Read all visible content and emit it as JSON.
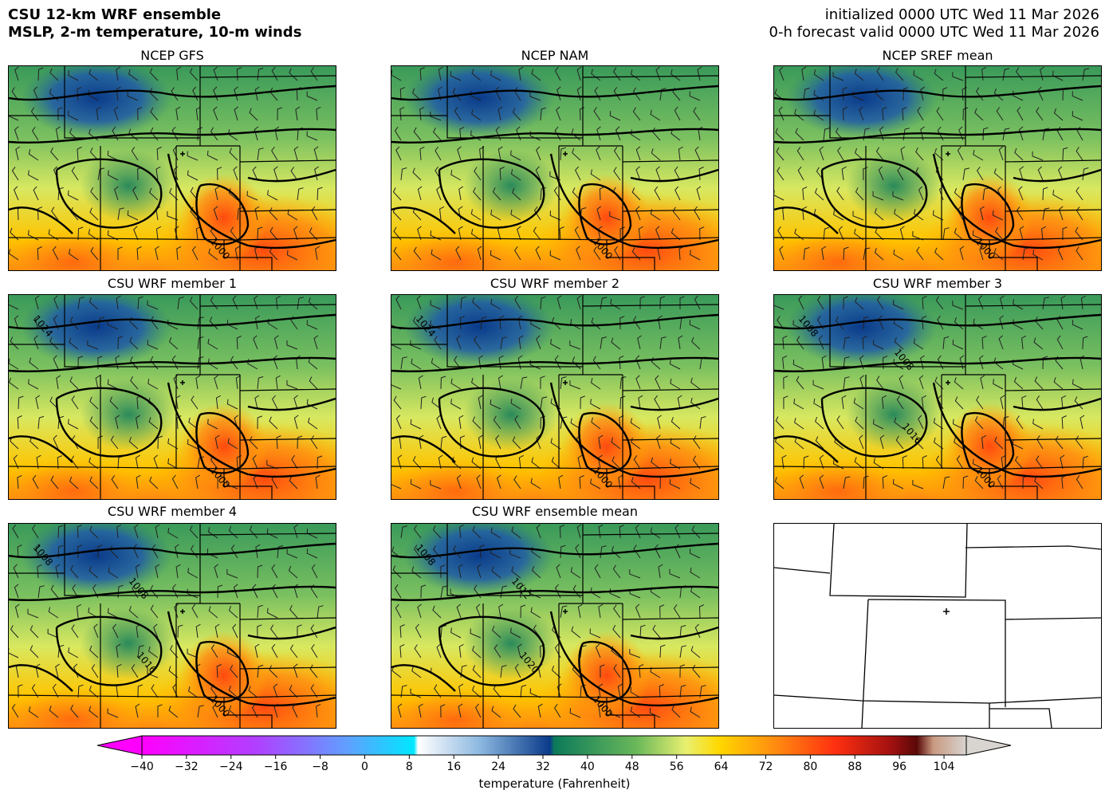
{
  "header": {
    "title_line1": "CSU 12-km WRF ensemble",
    "title_line2": "MSLP, 2-m temperature, 10-m winds",
    "init_line": "initialized 0000 UTC Wed 11 Mar 2026",
    "valid_line": "0-h forecast valid 0000 UTC Wed 11 Mar 2026"
  },
  "panels": [
    {
      "title": "NCEP GFS",
      "labels": [
        "1000"
      ],
      "type": "map"
    },
    {
      "title": "NCEP NAM",
      "labels": [
        "1000"
      ],
      "type": "map"
    },
    {
      "title": "NCEP SREF mean",
      "labels": [
        "1000"
      ],
      "type": "map"
    },
    {
      "title": "CSU WRF member 1",
      "labels": [
        "1000",
        "1024"
      ],
      "type": "map"
    },
    {
      "title": "CSU WRF member 2",
      "labels": [
        "1000",
        "1024"
      ],
      "type": "map"
    },
    {
      "title": "CSU WRF member 3",
      "labels": [
        "1000",
        "1008",
        "1008",
        "1016"
      ],
      "type": "map"
    },
    {
      "title": "CSU WRF member 4",
      "labels": [
        "1000",
        "1008",
        "1008",
        "1016"
      ],
      "type": "map"
    },
    {
      "title": "CSU WRF ensemble mean",
      "labels": [
        "1000",
        "1008",
        "1012",
        "1020"
      ],
      "type": "map"
    },
    {
      "title": "",
      "labels": [],
      "type": "blank"
    }
  ],
  "colorbar": {
    "label": "temperature (Fahrenheit)",
    "min": -40,
    "max": 108,
    "ticks": [
      "-40",
      "-32",
      "-24",
      "-16",
      "-8",
      "0",
      "8",
      "16",
      "24",
      "32",
      "40",
      "48",
      "56",
      "64",
      "72",
      "80",
      "88",
      "96",
      "104"
    ],
    "colors": {
      "magenta": "#ff00ff",
      "violet": "#a040ff",
      "blue_light": "#5fa0ff",
      "cyan": "#00e8ff",
      "white": "#ffffff",
      "light_blue": "#a8c8e8",
      "dark_blue": "#0a3a8a",
      "dark_green": "#0b7a5a",
      "green": "#3da05a",
      "yellow_green": "#c8e070",
      "yellow": "#ffee00",
      "orange": "#ff9a10",
      "red_orange": "#ff4010",
      "red": "#e01010",
      "dark_red": "#6a0808",
      "tan": "#c89a80",
      "light_gray": "#d8d4d0"
    }
  }
}
